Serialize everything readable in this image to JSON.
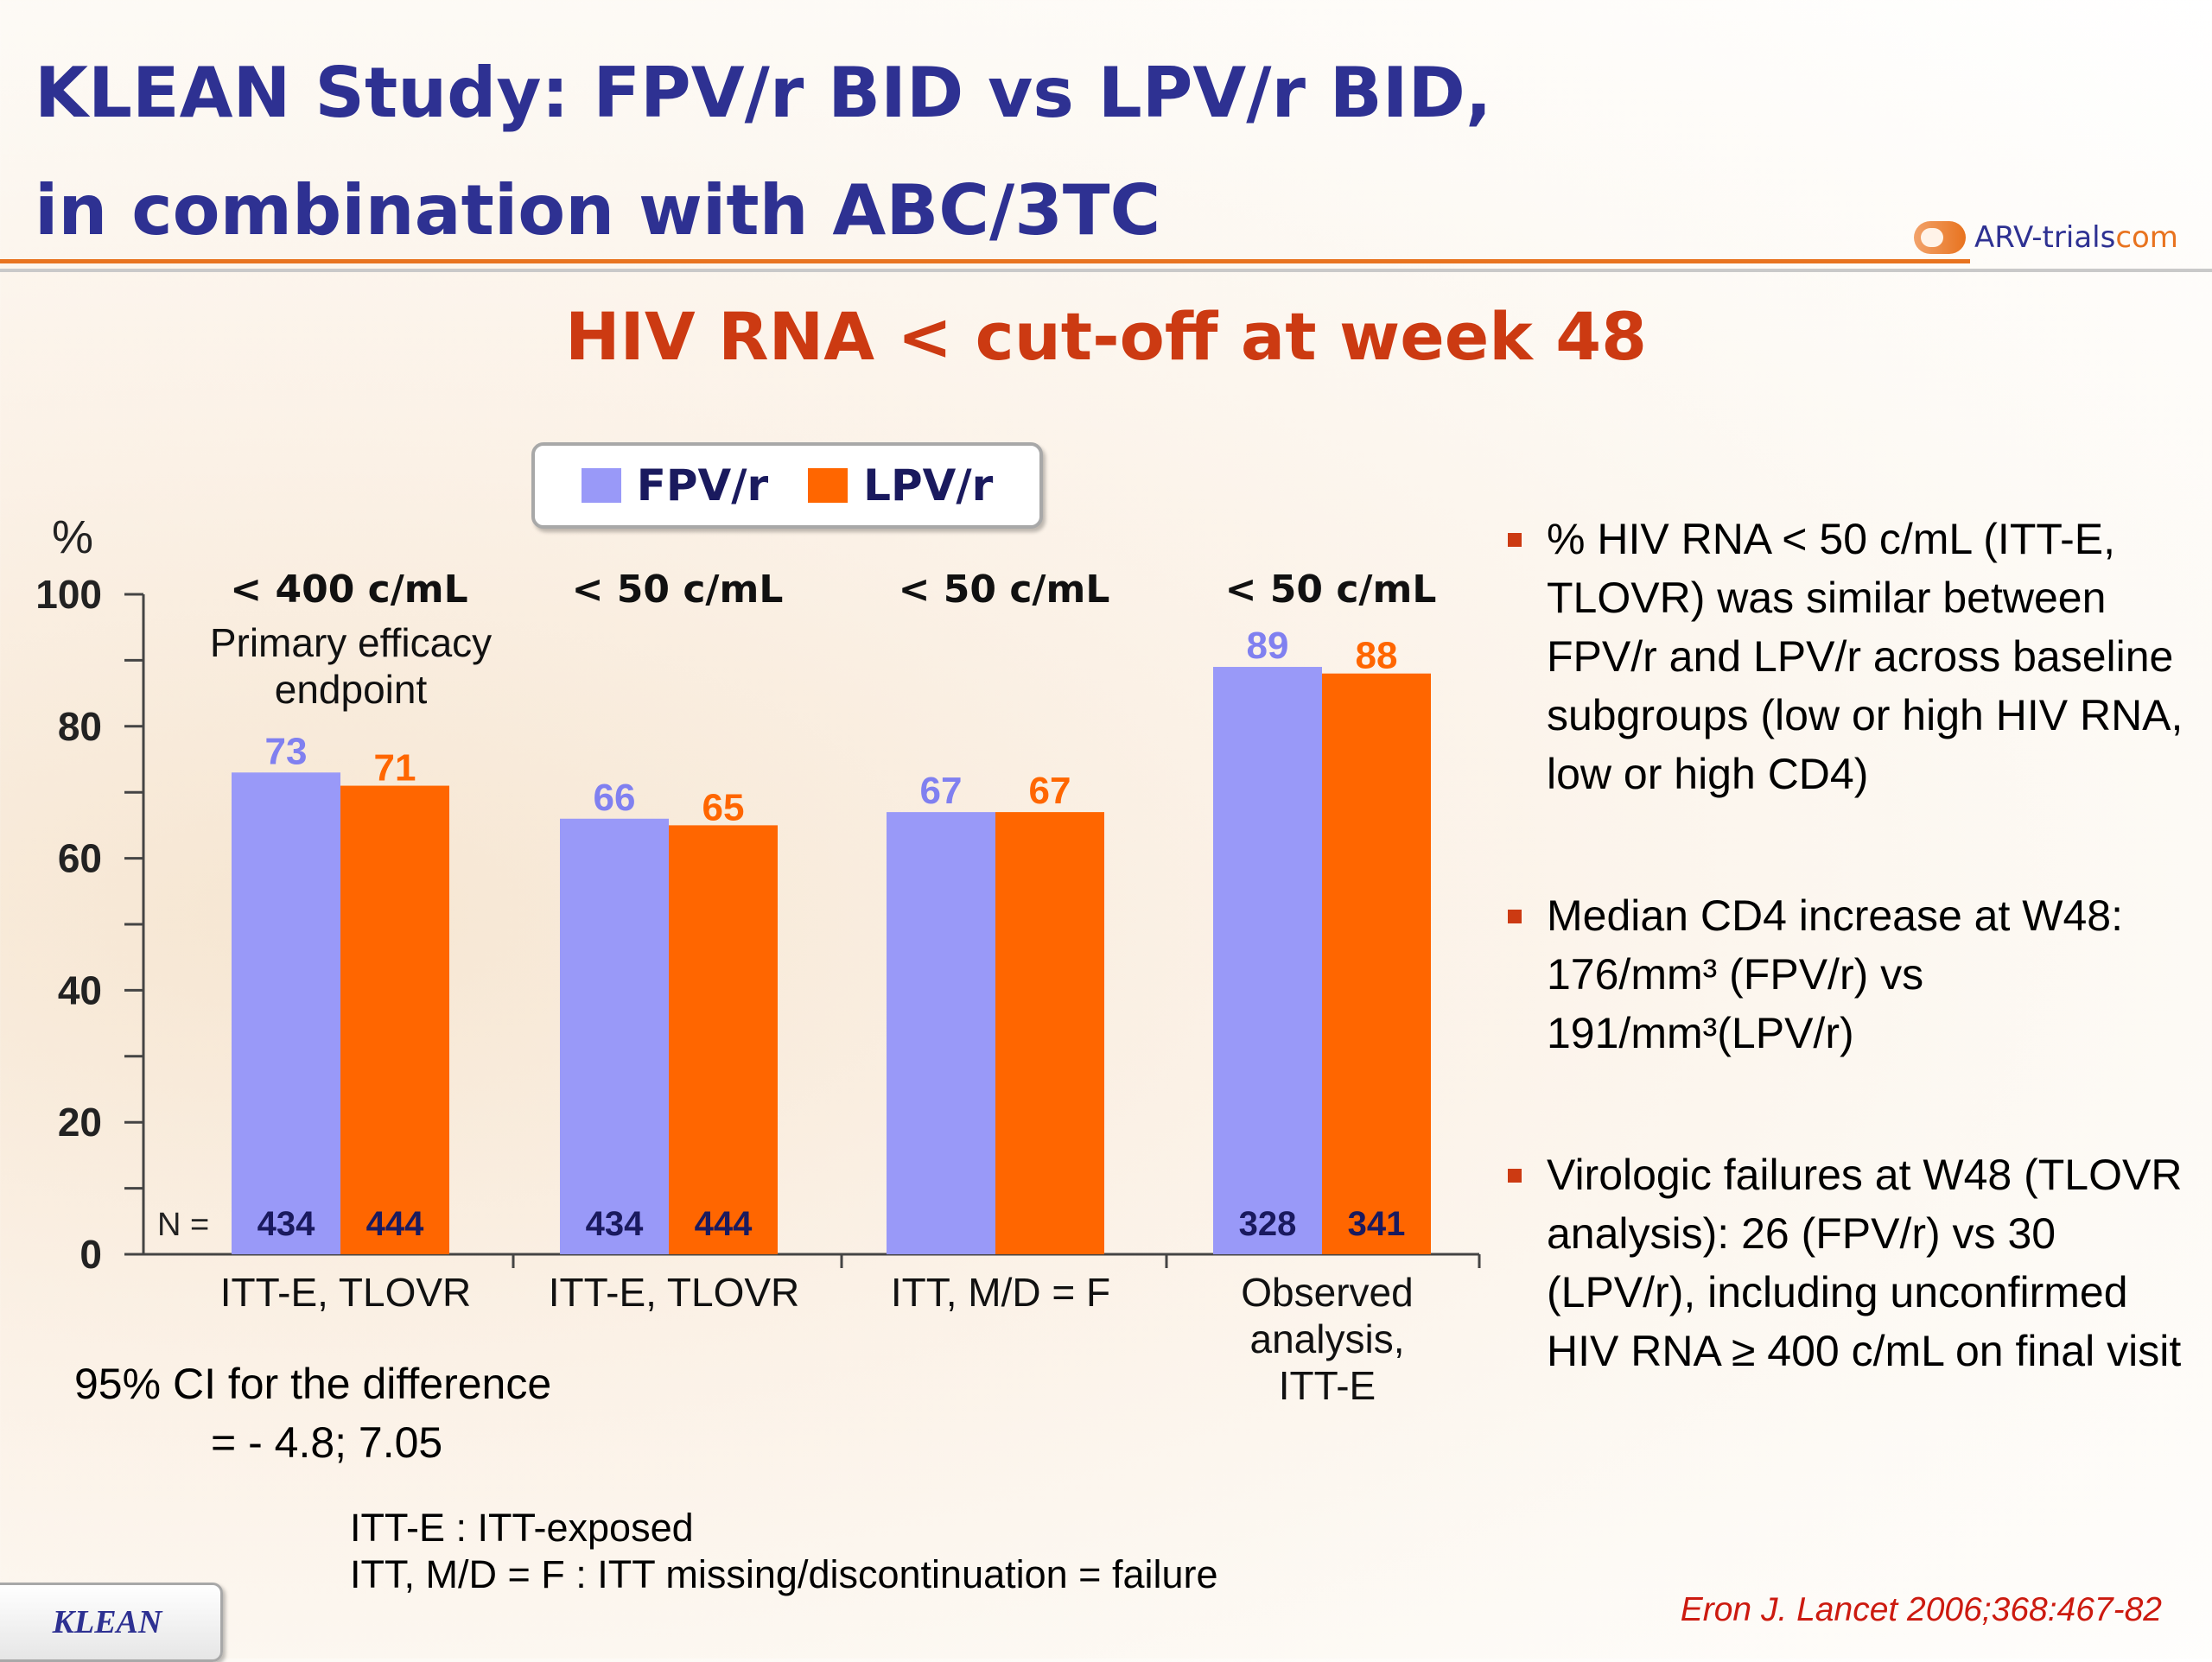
{
  "title": {
    "line1": "KLEAN Study: FPV/r BID vs LPV/r BID,",
    "line2": "in combination with ABC/3TC"
  },
  "brand": {
    "prefix": "ARV-trials",
    "suffix": "com"
  },
  "subtitle": "HIV RNA < cut-off at week 48",
  "legend": {
    "fpv": "FPV/r",
    "lpv": "LPV/r"
  },
  "colors": {
    "fpv": "#9999f8",
    "lpv": "#ff6600",
    "title": "#2e3192",
    "accent": "#cc3a12"
  },
  "chart_data": {
    "type": "bar",
    "ylabel": "%",
    "ylim": [
      0,
      100
    ],
    "yticks": [
      0,
      20,
      40,
      60,
      80,
      100
    ],
    "categories": [
      "ITT-E, TLOVR",
      "ITT-E, TLOVR",
      "ITT, M/D = F",
      "Observed analysis, ITT-E"
    ],
    "category_lines": [
      [
        "ITT-E, TLOVR"
      ],
      [
        "ITT-E, TLOVR"
      ],
      [
        "ITT, M/D = F"
      ],
      [
        "Observed",
        "analysis,",
        "ITT-E"
      ]
    ],
    "headers": [
      "< 400 c/mL",
      "< 50 c/mL",
      "< 50 c/mL",
      "< 50 c/mL"
    ],
    "header_note": [
      "Primary efficacy",
      "endpoint"
    ],
    "series": [
      {
        "name": "FPV/r",
        "values": [
          73,
          66,
          67,
          89
        ],
        "n": [
          "434",
          "434",
          "",
          "328"
        ]
      },
      {
        "name": "LPV/r",
        "values": [
          71,
          65,
          67,
          88
        ],
        "n": [
          "444",
          "444",
          "",
          "341"
        ]
      }
    ],
    "n_label": "N ="
  },
  "ci": {
    "line1": "95% CI for the difference",
    "line2": "= - 4.8; 7.05"
  },
  "bullets": [
    "% HIV RNA < 50 c/mL (ITT-E, TLOVR) was similar between FPV/r and LPV/r across baseline subgroups (low or high HIV RNA, low or high CD4)",
    "Median CD4 increase at W48: 176/mm³ (FPV/r) vs 191/mm³(LPV/r)",
    "Virologic failures at W48 (TLOVR analysis): 26 (FPV/r) vs 30 (LPV/r), including unconfirmed HIV RNA ≥ 400 c/mL on final visit"
  ],
  "defs": {
    "line1": "ITT-E : ITT-exposed",
    "line2": "ITT, M/D = F : ITT missing/discontinuation = failure"
  },
  "citation": "Eron J. Lancet 2006;368:467-82",
  "tab": "KLEAN"
}
